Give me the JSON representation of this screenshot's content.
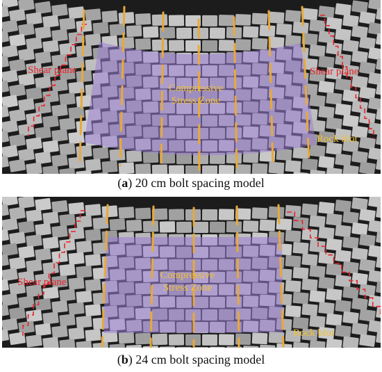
{
  "panels": [
    {
      "id": "a",
      "caption_letter": "a",
      "caption_text": "20 cm bolt spacing model",
      "zone_line1": "Compressive",
      "zone_line2": "Stress Zone",
      "shear_left": "Shear plane",
      "shear_right": "Shear plane",
      "bolt_label": "Rock blot"
    },
    {
      "id": "b",
      "caption_letter": "b",
      "caption_text": "24 cm bolt spacing model",
      "zone_line1": "Compressive",
      "zone_line2": "Stress Zone",
      "shear_left": "Shear plane",
      "bolt_label": "Rock blot"
    }
  ],
  "colors": {
    "shear": "#e8232a",
    "bolt": "#e8a93a",
    "zone_fill": "#9a7fd6",
    "label_yellow": "#f1c232"
  }
}
